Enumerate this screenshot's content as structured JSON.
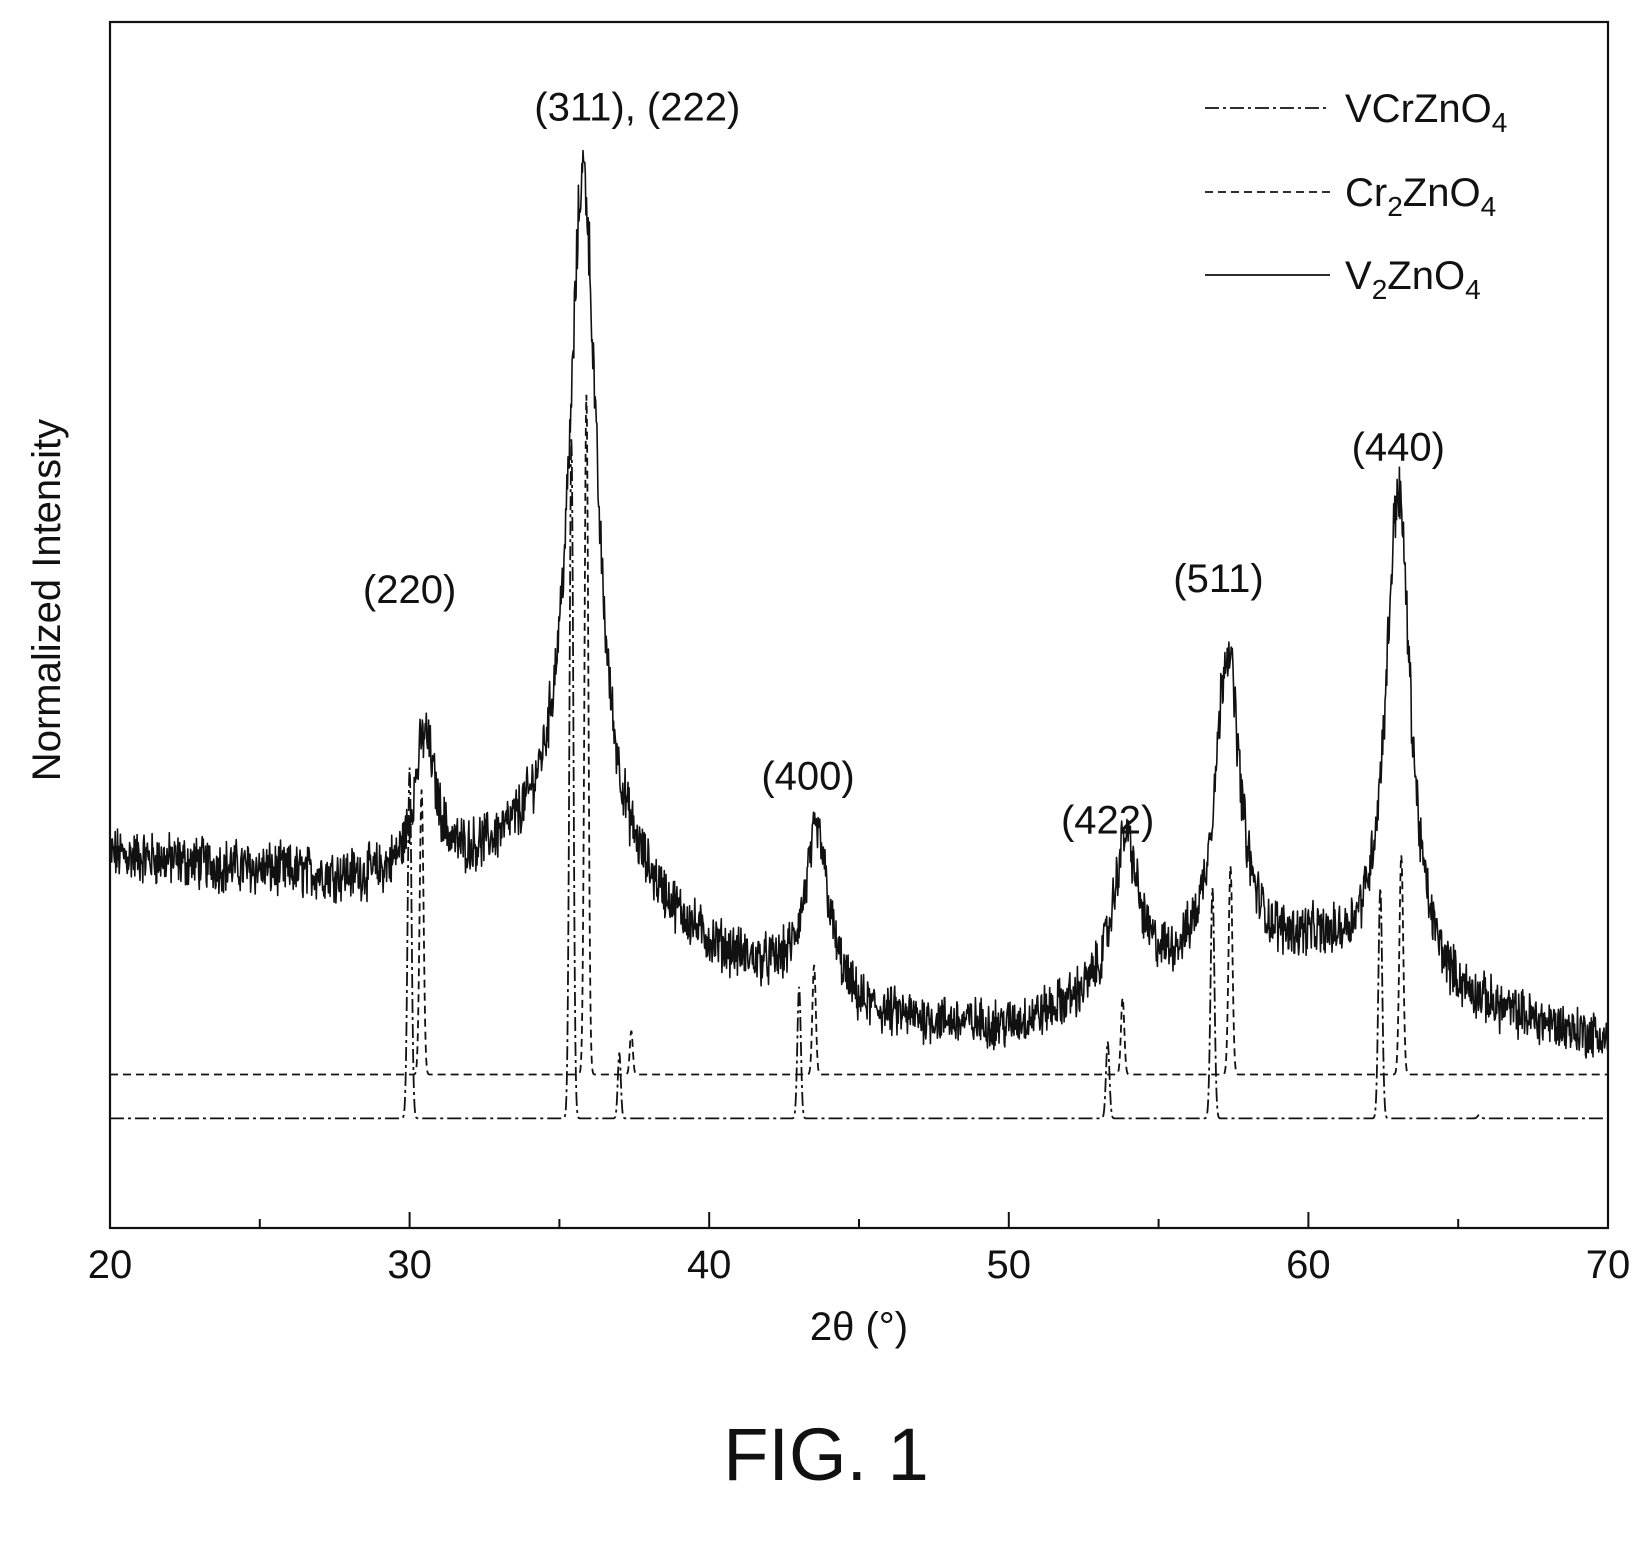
{
  "chart_data": {
    "type": "line",
    "xlabel": "2θ (°)",
    "ylabel": "Normalized Intensity",
    "xlim": [
      20,
      70
    ],
    "ylim": [
      -0.1,
      1.0
    ],
    "x_ticks": [
      20,
      30,
      40,
      50,
      60,
      70
    ],
    "legend_position": "top-right",
    "grid": false,
    "series": [
      {
        "name": "VCrZnO4",
        "display": [
          "VCrZnO",
          "4",
          ""
        ],
        "line_style": "dash-dot",
        "baseline": 0.0,
        "peaks": [
          {
            "x": 30.0,
            "h": 0.32,
            "w": 0.09
          },
          {
            "x": 35.4,
            "h": 0.62,
            "w": 0.09
          },
          {
            "x": 37.0,
            "h": 0.06,
            "w": 0.07
          },
          {
            "x": 43.0,
            "h": 0.12,
            "w": 0.08
          },
          {
            "x": 53.3,
            "h": 0.07,
            "w": 0.08
          },
          {
            "x": 56.8,
            "h": 0.21,
            "w": 0.09
          },
          {
            "x": 62.4,
            "h": 0.21,
            "w": 0.09
          },
          {
            "x": 65.7,
            "h": 0.003,
            "w": 0.08
          }
        ]
      },
      {
        "name": "Cr2ZnO4",
        "display": [
          "Cr",
          "2",
          "ZnO",
          "4",
          ""
        ],
        "line_style": "dashed",
        "baseline": 0.04,
        "peaks": [
          {
            "x": 30.4,
            "h": 0.26,
            "w": 0.09
          },
          {
            "x": 35.9,
            "h": 0.62,
            "w": 0.09
          },
          {
            "x": 37.4,
            "h": 0.04,
            "w": 0.07
          },
          {
            "x": 43.5,
            "h": 0.1,
            "w": 0.08
          },
          {
            "x": 53.8,
            "h": 0.07,
            "w": 0.08
          },
          {
            "x": 57.4,
            "h": 0.19,
            "w": 0.09
          },
          {
            "x": 63.1,
            "h": 0.2,
            "w": 0.09
          }
        ]
      },
      {
        "name": "V2ZnO4",
        "display": [
          "V",
          "2",
          "ZnO",
          "4",
          ""
        ],
        "line_style": "solid",
        "baseline": 0.24,
        "background": {
          "points": [
            [
              20,
              0.24
            ],
            [
              30,
              0.21
            ],
            [
              35,
              0.25
            ],
            [
              40,
              0.15
            ],
            [
              45,
              0.09
            ],
            [
              50,
              0.08
            ],
            [
              55,
              0.12
            ],
            [
              60,
              0.15
            ],
            [
              65,
              0.1
            ],
            [
              70,
              0.07
            ]
          ]
        },
        "peaks": [
          {
            "x": 30.5,
            "h": 0.13,
            "w": 0.45
          },
          {
            "x": 35.8,
            "h": 0.63,
            "w": 0.55
          },
          {
            "x": 43.6,
            "h": 0.15,
            "w": 0.5
          },
          {
            "x": 53.9,
            "h": 0.14,
            "w": 0.5
          },
          {
            "x": 57.3,
            "h": 0.29,
            "w": 0.5
          },
          {
            "x": 63.0,
            "h": 0.45,
            "w": 0.5
          }
        ],
        "noise": 0.018
      }
    ],
    "annotations": [
      {
        "text": "(220)",
        "x": 30.0,
        "y": 0.47
      },
      {
        "text": "(311), (222)",
        "x": 37.6,
        "y": 0.91
      },
      {
        "text": "(400)",
        "x": 43.3,
        "y": 0.3
      },
      {
        "text": "(422)",
        "x": 53.3,
        "y": 0.26
      },
      {
        "text": "(511)",
        "x": 57.0,
        "y": 0.48
      },
      {
        "text": "(440)",
        "x": 63.0,
        "y": 0.6
      }
    ]
  },
  "figure_caption": "FIG. 1"
}
